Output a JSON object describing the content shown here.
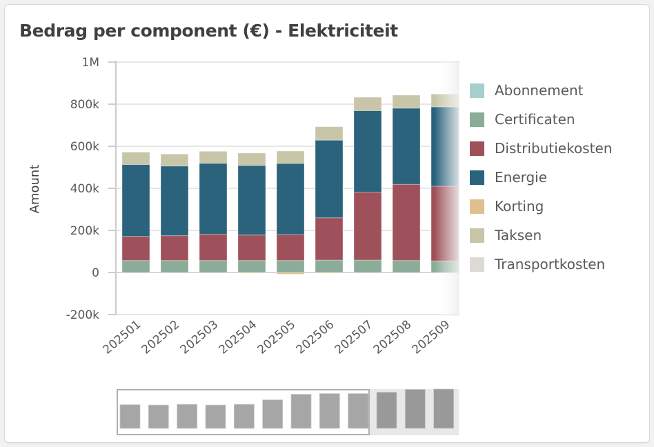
{
  "card": {
    "title": "Bedrag per component (€) - Elektriciteit"
  },
  "chart_data": {
    "type": "bar",
    "stacked": true,
    "title": "Bedrag per component (€) - Elektriciteit",
    "xlabel": "",
    "ylabel": "Amount",
    "ylim": [
      -200000,
      1000000
    ],
    "yticks": [
      {
        "value": 1000000,
        "label": "1M"
      },
      {
        "value": 800000,
        "label": "800k"
      },
      {
        "value": 600000,
        "label": "600k"
      },
      {
        "value": 400000,
        "label": "400k"
      },
      {
        "value": 200000,
        "label": "200k"
      },
      {
        "value": 0,
        "label": "0"
      },
      {
        "value": -200000,
        "label": "-200k"
      }
    ],
    "grid": true,
    "legend_position": "right",
    "categories": [
      "202501",
      "202502",
      "202503",
      "202504",
      "202505",
      "202506",
      "202507",
      "202508",
      "202509"
    ],
    "series": [
      {
        "name": "Abonnement",
        "color": "#a6cfcf",
        "values": [
          0,
          0,
          0,
          0,
          0,
          0,
          0,
          0,
          0
        ]
      },
      {
        "name": "Certificaten",
        "color": "#8aac98",
        "values": [
          57000,
          57000,
          57000,
          57000,
          57000,
          59000,
          59000,
          57000,
          55000
        ]
      },
      {
        "name": "Distributiekosten",
        "color": "#9e515a",
        "values": [
          115000,
          118000,
          125000,
          121000,
          123000,
          201000,
          323000,
          362000,
          355000
        ]
      },
      {
        "name": "Energie",
        "color": "#2a637b",
        "values": [
          341000,
          331000,
          337000,
          331000,
          338000,
          369000,
          387000,
          362000,
          377000
        ]
      },
      {
        "name": "Korting",
        "color": "#e0c08e",
        "values": [
          0,
          0,
          0,
          -2000,
          -8000,
          -1000,
          0,
          0,
          0
        ]
      },
      {
        "name": "Taksen",
        "color": "#c8c5a8",
        "values": [
          59000,
          57000,
          57000,
          59000,
          59000,
          64000,
          64000,
          62000,
          61000
        ]
      },
      {
        "name": "Transportkosten",
        "color": "#ddd9d5",
        "values": [
          0,
          0,
          0,
          0,
          0,
          0,
          0,
          0,
          0
        ]
      }
    ],
    "navigator": {
      "total_bars_relative": [
        0.68,
        0.67,
        0.69,
        0.67,
        0.69,
        0.82,
        0.98,
        1.0,
        1.0,
        1.04,
        1.12,
        1.13
      ],
      "visible_range": [
        1,
        9
      ]
    }
  }
}
